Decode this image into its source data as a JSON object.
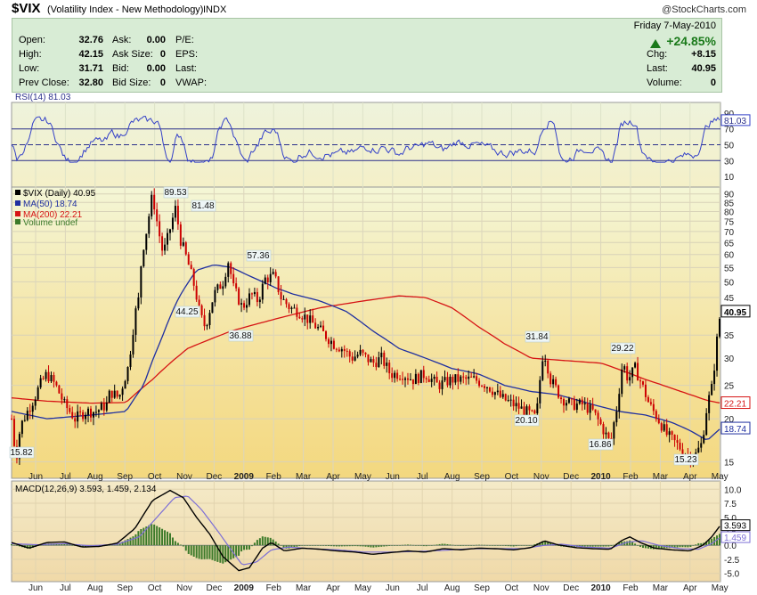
{
  "header": {
    "symbol": "$VIX",
    "name": "(Volatility Index - New Methodology)",
    "exchange": "INDX",
    "credit": "@StockCharts.com"
  },
  "quote": {
    "open_label": "Open:",
    "open": "32.76",
    "high_label": "High:",
    "high": "42.15",
    "low_label": "Low:",
    "low": "31.71",
    "prevclose_label": "Prev Close:",
    "prevclose": "32.80",
    "ask_label": "Ask:",
    "ask": "0.00",
    "asksize_label": "Ask Size:",
    "asksize": "0",
    "bid_label": "Bid:",
    "bid": "0.00",
    "bidsize_label": "Bid Size:",
    "bidsize": "0",
    "pe_label": "P/E:",
    "eps_label": "EPS:",
    "last_label": "Last:",
    "vwap_label": "VWAP:",
    "date": "Friday  7-May-2010",
    "pct_change": "+24.85%",
    "chg_label": "Chg:",
    "chg": "+8.15",
    "last2_label": "Last:",
    "last2": "40.95",
    "volume_label": "Volume:",
    "volume": "0"
  },
  "colors": {
    "up": "#1a7a1a",
    "price_up": "#000000",
    "price_down": "#cc0000",
    "ma50": "#1f2fa0",
    "ma200": "#d61414",
    "rsi": "#3340c8",
    "macd": "#000000",
    "signal": "#7d6fd6",
    "histogram": "#3c7a2a",
    "panel_bg": "#d8ecd5"
  },
  "chart_data": [
    {
      "type": "line",
      "panel": "RSI",
      "title": "RSI(14) 81.03",
      "y_ticks": [
        "90",
        "70",
        "50",
        "30",
        "10"
      ],
      "current_value": "81.03",
      "ylim": [
        0,
        100
      ],
      "reference_lines": [
        70,
        50,
        30
      ]
    },
    {
      "type": "candlestick",
      "panel": "price",
      "legend": [
        "$VIX (Daily) 40.95",
        "MA(50) 18.74",
        "MA(200) 22.21",
        "Volume undef"
      ],
      "y_ticks": [
        "90",
        "85",
        "80",
        "75",
        "70",
        "65",
        "60",
        "55",
        "50",
        "45",
        "35",
        "30",
        "25",
        "20",
        "15"
      ],
      "y_scale": "log",
      "ylim": [
        14,
        92
      ],
      "x_ticks": [
        "Jun",
        "Jul",
        "Aug",
        "Sep",
        "Oct",
        "Nov",
        "Dec",
        "2009",
        "Feb",
        "Mar",
        "Apr",
        "May",
        "Jun",
        "Jul",
        "Aug",
        "Sep",
        "Oct",
        "Nov",
        "Dec",
        "2010",
        "Feb",
        "Mar",
        "Apr",
        "May"
      ],
      "annotations": [
        "15.82",
        "89.53",
        "81.48",
        "44.25",
        "36.88",
        "57.36",
        "31.84",
        "20.10",
        "16.86",
        "29.22",
        "15.23"
      ],
      "price_keypoints": [
        [
          0,
          20
        ],
        [
          3,
          17
        ],
        [
          6,
          15.82
        ],
        [
          10,
          19
        ],
        [
          18,
          21
        ],
        [
          26,
          23
        ],
        [
          32,
          25
        ],
        [
          40,
          27
        ],
        [
          50,
          25
        ],
        [
          60,
          22
        ],
        [
          72,
          20
        ],
        [
          84,
          21
        ],
        [
          96,
          21
        ],
        [
          108,
          22
        ],
        [
          112,
          24
        ],
        [
          122,
          23
        ],
        [
          132,
          28
        ],
        [
          136,
          33
        ],
        [
          140,
          40
        ],
        [
          144,
          44.25
        ],
        [
          148,
          60
        ],
        [
          154,
          72
        ],
        [
          160,
          89.53
        ],
        [
          166,
          72
        ],
        [
          172,
          60
        ],
        [
          178,
          68
        ],
        [
          186,
          81.48
        ],
        [
          192,
          66
        ],
        [
          200,
          57
        ],
        [
          208,
          48
        ],
        [
          214,
          40
        ],
        [
          220,
          36.88
        ],
        [
          230,
          46
        ],
        [
          240,
          50
        ],
        [
          246,
          57.36
        ],
        [
          252,
          48
        ],
        [
          262,
          42
        ],
        [
          272,
          46
        ],
        [
          280,
          44
        ],
        [
          288,
          51
        ],
        [
          298,
          52
        ],
        [
          306,
          45
        ],
        [
          316,
          42
        ],
        [
          326,
          41
        ],
        [
          336,
          39
        ],
        [
          346,
          37
        ],
        [
          356,
          35
        ],
        [
          366,
          33
        ],
        [
          376,
          32
        ],
        [
          386,
          30
        ],
        [
          396,
          31
        ],
        [
          410,
          29
        ],
        [
          420,
          30
        ],
        [
          430,
          27
        ],
        [
          444,
          27
        ],
        [
          456,
          26
        ],
        [
          470,
          27
        ],
        [
          484,
          25
        ],
        [
          500,
          26
        ],
        [
          512,
          26
        ],
        [
          526,
          26
        ],
        [
          540,
          25
        ],
        [
          556,
          23
        ],
        [
          570,
          22
        ],
        [
          584,
          21
        ],
        [
          596,
          20.1
        ],
        [
          604,
          31.84
        ],
        [
          612,
          26
        ],
        [
          624,
          23
        ],
        [
          636,
          22
        ],
        [
          648,
          22
        ],
        [
          660,
          21
        ],
        [
          670,
          19
        ],
        [
          680,
          16.86
        ],
        [
          688,
          22
        ],
        [
          694,
          29.22
        ],
        [
          700,
          26
        ],
        [
          708,
          28
        ],
        [
          716,
          25
        ],
        [
          724,
          22
        ],
        [
          734,
          20
        ],
        [
          744,
          18
        ],
        [
          754,
          17
        ],
        [
          764,
          16
        ],
        [
          774,
          15.23
        ],
        [
          784,
          17
        ],
        [
          790,
          22
        ],
        [
          796,
          25
        ],
        [
          800,
          32
        ],
        [
          805,
          40.95
        ]
      ],
      "ma50_keypoints": [
        [
          0,
          21
        ],
        [
          40,
          20
        ],
        [
          90,
          20.5
        ],
        [
          130,
          21
        ],
        [
          150,
          25
        ],
        [
          170,
          34
        ],
        [
          190,
          45
        ],
        [
          210,
          54
        ],
        [
          230,
          56
        ],
        [
          250,
          55
        ],
        [
          270,
          52
        ],
        [
          300,
          48
        ],
        [
          320,
          46
        ],
        [
          350,
          44
        ],
        [
          380,
          41
        ],
        [
          410,
          36
        ],
        [
          440,
          32
        ],
        [
          470,
          30
        ],
        [
          500,
          28
        ],
        [
          530,
          27
        ],
        [
          560,
          25
        ],
        [
          590,
          24
        ],
        [
          620,
          23.5
        ],
        [
          660,
          22
        ],
        [
          690,
          21
        ],
        [
          720,
          20.5
        ],
        [
          750,
          19.5
        ],
        [
          770,
          18.5
        ],
        [
          790,
          17.3
        ],
        [
          805,
          18.74
        ]
      ],
      "ma200_keypoints": [
        [
          0,
          23
        ],
        [
          40,
          22.5
        ],
        [
          90,
          22.2
        ],
        [
          130,
          22.3
        ],
        [
          160,
          26
        ],
        [
          200,
          32
        ],
        [
          250,
          36
        ],
        [
          300,
          39
        ],
        [
          350,
          42
        ],
        [
          400,
          44
        ],
        [
          440,
          45.5
        ],
        [
          470,
          45
        ],
        [
          500,
          42
        ],
        [
          530,
          37
        ],
        [
          560,
          33
        ],
        [
          590,
          30
        ],
        [
          630,
          29.5
        ],
        [
          670,
          29
        ],
        [
          720,
          26
        ],
        [
          760,
          24
        ],
        [
          790,
          22.6
        ],
        [
          805,
          22.21
        ]
      ],
      "value_labels": [
        "40.95",
        "22.21",
        "18.74"
      ]
    },
    {
      "type": "line",
      "panel": "MACD",
      "title": "MACD(12,26,9) 3.593, 1.459, 2.134",
      "series": [
        {
          "name": "MACD",
          "values": "3.593"
        },
        {
          "name": "Signal",
          "values": "1.459"
        },
        {
          "name": "Histogram",
          "values": "2.134"
        }
      ],
      "y_ticks": [
        "10.0",
        "7.5",
        "5.0",
        "2.5",
        "0.0",
        "-2.5",
        "-5.0"
      ],
      "ylim": [
        -6,
        11
      ],
      "value_labels": [
        "3.593",
        "1.459"
      ],
      "x_ticks": [
        "Jun",
        "Jul",
        "Aug",
        "Sep",
        "Oct",
        "Nov",
        "Dec",
        "2009",
        "Feb",
        "Mar",
        "Apr",
        "May",
        "Jun",
        "Jul",
        "Aug",
        "Sep",
        "Oct",
        "Nov",
        "Dec",
        "2010",
        "Feb",
        "Mar",
        "Apr",
        "May"
      ],
      "macd_keypoints": [
        [
          0,
          0.5
        ],
        [
          20,
          -0.5
        ],
        [
          40,
          0.5
        ],
        [
          60,
          0.6
        ],
        [
          80,
          -0.3
        ],
        [
          100,
          -0.2
        ],
        [
          120,
          0.4
        ],
        [
          140,
          3
        ],
        [
          160,
          8
        ],
        [
          180,
          9.8
        ],
        [
          195,
          8.5
        ],
        [
          210,
          5
        ],
        [
          225,
          2
        ],
        [
          240,
          -2
        ],
        [
          258,
          -4.5
        ],
        [
          270,
          -4
        ],
        [
          285,
          -0.5
        ],
        [
          295,
          0.5
        ],
        [
          310,
          -1
        ],
        [
          330,
          -0.5
        ],
        [
          350,
          -0.7
        ],
        [
          370,
          -1
        ],
        [
          390,
          -1.2
        ],
        [
          410,
          -1.6
        ],
        [
          430,
          -1.3
        ],
        [
          450,
          -1.0
        ],
        [
          470,
          -1.2
        ],
        [
          490,
          -0.6
        ],
        [
          510,
          -0.8
        ],
        [
          530,
          -0.5
        ],
        [
          550,
          -0.6
        ],
        [
          570,
          -0.8
        ],
        [
          590,
          -0.4
        ],
        [
          605,
          0.8
        ],
        [
          620,
          0.1
        ],
        [
          640,
          -0.4
        ],
        [
          660,
          -0.6
        ],
        [
          680,
          -0.7
        ],
        [
          692,
          0.8
        ],
        [
          702,
          1.5
        ],
        [
          714,
          0.5
        ],
        [
          730,
          -0.5
        ],
        [
          750,
          -0.8
        ],
        [
          770,
          -1.0
        ],
        [
          785,
          0.0
        ],
        [
          795,
          1.5
        ],
        [
          805,
          3.593
        ]
      ],
      "signal_keypoints": [
        [
          0,
          0.3
        ],
        [
          30,
          0.1
        ],
        [
          60,
          0.3
        ],
        [
          90,
          -0.1
        ],
        [
          120,
          0.2
        ],
        [
          145,
          1.5
        ],
        [
          165,
          5
        ],
        [
          185,
          8.5
        ],
        [
          200,
          8.8
        ],
        [
          215,
          6.5
        ],
        [
          232,
          3
        ],
        [
          248,
          -0.5
        ],
        [
          262,
          -3.5
        ],
        [
          278,
          -3
        ],
        [
          295,
          -0.8
        ],
        [
          315,
          -0.3
        ],
        [
          340,
          -0.6
        ],
        [
          370,
          -0.8
        ],
        [
          400,
          -1.2
        ],
        [
          430,
          -1.2
        ],
        [
          460,
          -1.1
        ],
        [
          490,
          -0.9
        ],
        [
          520,
          -0.6
        ],
        [
          550,
          -0.6
        ],
        [
          580,
          -0.6
        ],
        [
          605,
          0.0
        ],
        [
          625,
          0.2
        ],
        [
          650,
          -0.3
        ],
        [
          680,
          -0.5
        ],
        [
          700,
          0.6
        ],
        [
          716,
          0.8
        ],
        [
          735,
          0.0
        ],
        [
          760,
          -0.6
        ],
        [
          780,
          -0.7
        ],
        [
          795,
          0.3
        ],
        [
          805,
          1.459
        ]
      ]
    }
  ]
}
